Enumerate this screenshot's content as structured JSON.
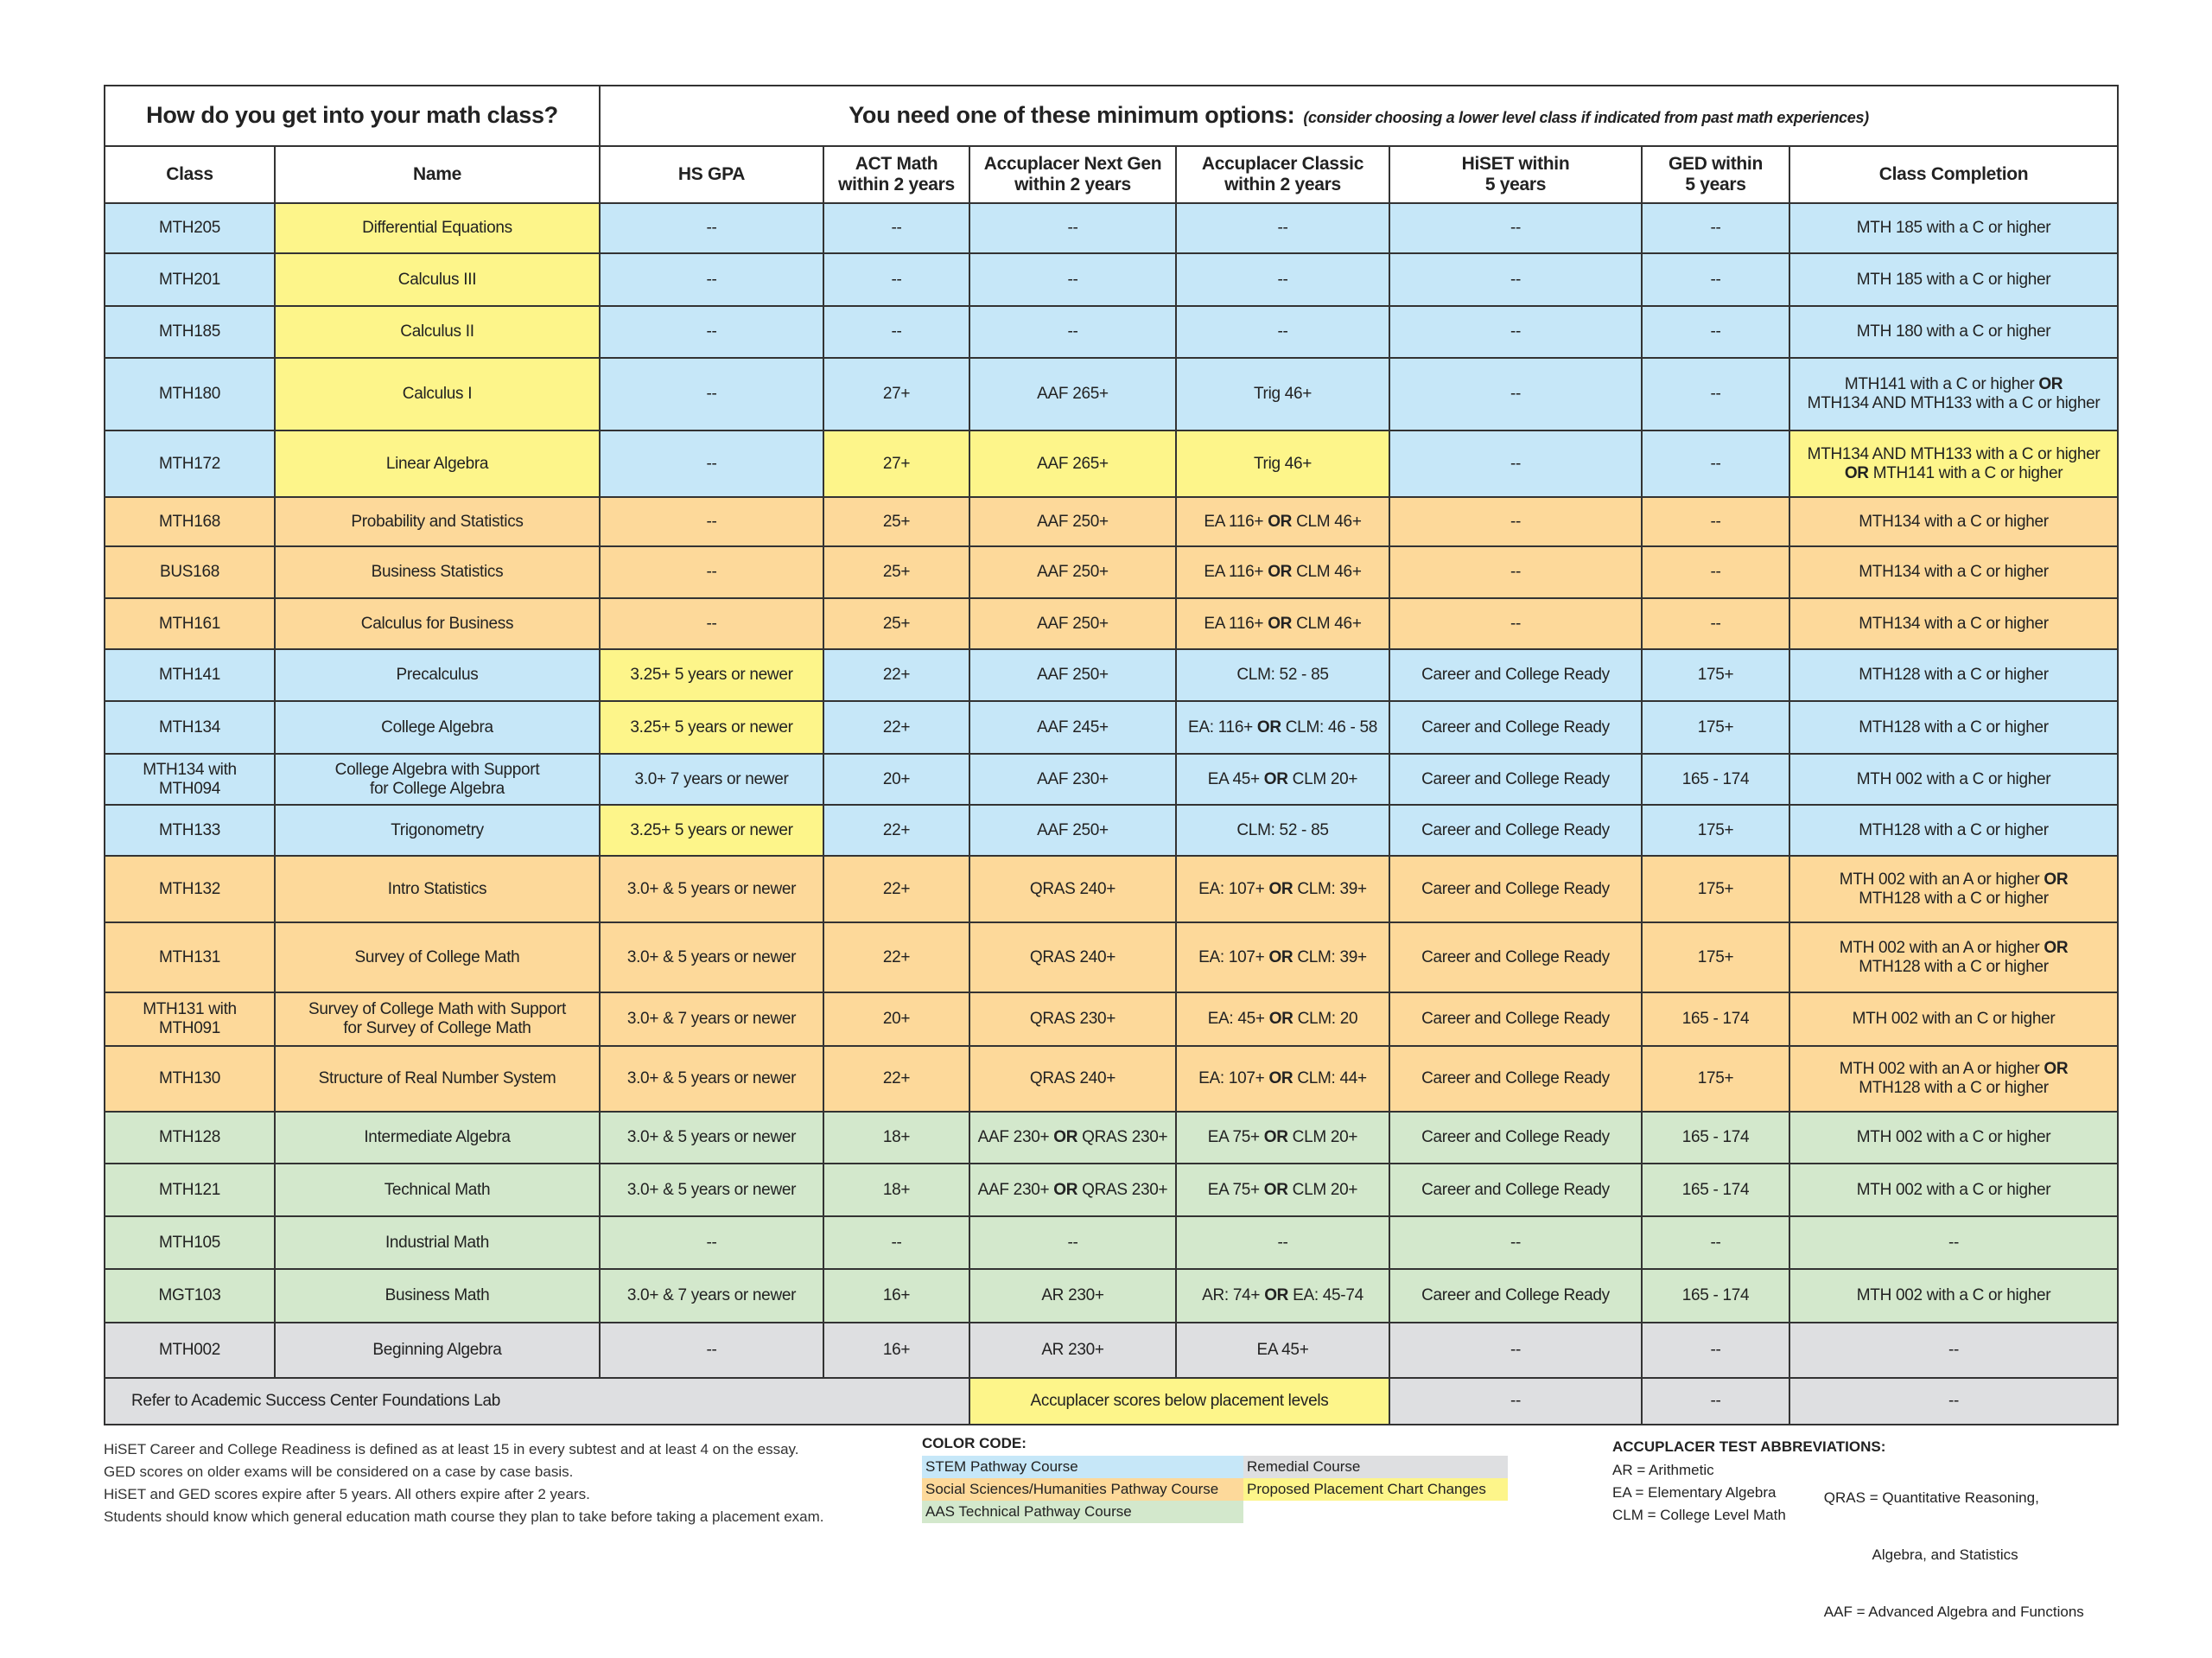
{
  "header": {
    "left_title": "How do you get into your math class?",
    "right_title": "You need one of these minimum options:",
    "right_subtitle": "(consider choosing a lower level class if indicated from past math experiences)"
  },
  "columns": [
    "Class",
    "Name",
    "HS GPA",
    "ACT Math\nwithin 2 years",
    "Accuplacer Next Gen\nwithin 2 years",
    "Accuplacer Classic\nwithin 2 years",
    "HiSET within\n5 years",
    "GED within\n5 years",
    "Class Completion"
  ],
  "colors": {
    "stem": "#c6e7f8",
    "social": "#fdd99a",
    "aas": "#d3e8cc",
    "remedial": "#dedfe1",
    "proposed": "#fdf58a"
  },
  "rows": [
    {
      "cat": "stem",
      "hl": [
        1
      ],
      "cells": [
        "MTH205",
        "Differential Equations",
        "--",
        "--",
        "--",
        "--",
        "--",
        "--",
        "MTH 185 with a C or higher"
      ]
    },
    {
      "cat": "stem",
      "hl": [
        1
      ],
      "cells": [
        "MTH201",
        "Calculus III",
        "--",
        "--",
        "--",
        "--",
        "--",
        "--",
        "MTH 185 with a C or higher"
      ]
    },
    {
      "cat": "stem",
      "hl": [
        1
      ],
      "cells": [
        "MTH185",
        "Calculus II",
        "--",
        "--",
        "--",
        "--",
        "--",
        "--",
        "MTH 180 with a C or higher"
      ]
    },
    {
      "cat": "stem",
      "hl": [
        1
      ],
      "cells": [
        "MTH180",
        "Calculus I",
        "--",
        "27+",
        "AAF 265+",
        "Trig 46+",
        "--",
        "--",
        "MTH141 with a C or higher OR\nMTH134 AND MTH133 with a C or higher"
      ]
    },
    {
      "cat": "stem",
      "hl": [
        1,
        3,
        4,
        5,
        8
      ],
      "cells": [
        "MTH172",
        "Linear Algebra",
        "--",
        "27+",
        "AAF 265+",
        "Trig 46+",
        "--",
        "--",
        "MTH134 AND MTH133 with a C or higher\nOR MTH141 with a C or higher"
      ]
    },
    {
      "cat": "social",
      "hl": [],
      "cells": [
        "MTH168",
        "Probability and Statistics",
        "--",
        "25+",
        "AAF 250+",
        "EA 116+ OR CLM 46+",
        "--",
        "--",
        "MTH134 with a C or higher"
      ]
    },
    {
      "cat": "social",
      "hl": [],
      "cells": [
        "BUS168",
        "Business Statistics",
        "--",
        "25+",
        "AAF 250+",
        "EA 116+ OR CLM 46+",
        "--",
        "--",
        "MTH134 with a C or higher"
      ]
    },
    {
      "cat": "social",
      "hl": [],
      "cells": [
        "MTH161",
        "Calculus for Business",
        "--",
        "25+",
        "AAF 250+",
        "EA 116+ OR CLM 46+",
        "--",
        "--",
        "MTH134 with a C or higher"
      ]
    },
    {
      "cat": "stem",
      "hl": [
        2
      ],
      "cells": [
        "MTH141",
        "Precalculus",
        "3.25+ 5 years or newer",
        "22+",
        "AAF 250+",
        "CLM: 52 - 85",
        "Career and College Ready",
        "175+",
        "MTH128 with a C or higher"
      ]
    },
    {
      "cat": "stem",
      "hl": [
        2
      ],
      "cells": [
        "MTH134",
        "College Algebra",
        "3.25+ 5 years or newer",
        "22+",
        "AAF 245+",
        "EA: 116+ OR CLM: 46 - 58",
        "Career and College Ready",
        "175+",
        "MTH128 with a C or higher"
      ]
    },
    {
      "cat": "stem",
      "hl": [],
      "cells": [
        "MTH134 with MTH094",
        "College Algebra with Support\nfor College Algebra",
        "3.0+ 7 years or newer",
        "20+",
        "AAF 230+",
        "EA 45+ OR CLM 20+",
        "Career and College Ready",
        "165 - 174",
        "MTH 002 with a C or higher"
      ]
    },
    {
      "cat": "stem",
      "hl": [
        2
      ],
      "cells": [
        "MTH133",
        "Trigonometry",
        "3.25+ 5 years or newer",
        "22+",
        "AAF 250+",
        "CLM: 52 - 85",
        "Career and College Ready",
        "175+",
        "MTH128 with a C or higher"
      ]
    },
    {
      "cat": "social",
      "hl": [],
      "cells": [
        "MTH132",
        "Intro Statistics",
        "3.0+ & 5 years or newer",
        "22+",
        "QRAS 240+",
        "EA: 107+ OR CLM: 39+",
        "Career and College Ready",
        "175+",
        "MTH 002 with an A or higher OR\nMTH128 with a C or higher"
      ]
    },
    {
      "cat": "social",
      "hl": [],
      "cells": [
        "MTH131",
        "Survey of College Math",
        "3.0+ & 5 years or newer",
        "22+",
        "QRAS 240+",
        "EA: 107+ OR CLM: 39+",
        "Career and College Ready",
        "175+",
        "MTH 002 with an A or higher OR\nMTH128 with a C or higher"
      ]
    },
    {
      "cat": "social",
      "hl": [],
      "cells": [
        "MTH131 with MTH091",
        "Survey of College Math with Support\nfor Survey of College Math",
        "3.0+ & 7 years or newer",
        "20+",
        "QRAS 230+",
        "EA: 45+ OR CLM: 20",
        "Career and College Ready",
        "165 - 174",
        "MTH 002 with an C or higher"
      ]
    },
    {
      "cat": "social",
      "hl": [],
      "cells": [
        "MTH130",
        "Structure of Real Number System",
        "3.0+ & 5 years or newer",
        "22+",
        "QRAS 240+",
        "EA: 107+ OR CLM: 44+",
        "Career and College Ready",
        "175+",
        "MTH 002 with an A or higher OR\nMTH128 with a C or higher"
      ]
    },
    {
      "cat": "aas",
      "hl": [],
      "cells": [
        "MTH128",
        "Intermediate Algebra",
        "3.0+ & 5 years or newer",
        "18+",
        "AAF 230+ OR QRAS 230+",
        "EA 75+ OR CLM 20+",
        "Career and College Ready",
        "165 - 174",
        "MTH 002 with a C or higher"
      ]
    },
    {
      "cat": "aas",
      "hl": [],
      "cells": [
        "MTH121",
        "Technical Math",
        "3.0+ & 5 years or newer",
        "18+",
        "AAF 230+ OR QRAS 230+",
        "EA 75+ OR CLM 20+",
        "Career and College Ready",
        "165 - 174",
        "MTH 002 with a C or higher"
      ]
    },
    {
      "cat": "aas",
      "hl": [],
      "cells": [
        "MTH105",
        "Industrial Math",
        "--",
        "--",
        "--",
        "--",
        "--",
        "--",
        "--"
      ]
    },
    {
      "cat": "aas",
      "hl": [],
      "cells": [
        "MGT103",
        "Business Math",
        "3.0+ & 7 years or newer",
        "16+",
        "AR 230+",
        "AR: 74+ OR EA: 45-74",
        "Career and College Ready",
        "165 - 174",
        "MTH 002 with a C or higher"
      ]
    },
    {
      "cat": "remedial",
      "hl": [],
      "cells": [
        "MTH002",
        "Beginning Algebra",
        "--",
        "16+",
        "AR 230+",
        "EA 45+",
        "--",
        "--",
        "--"
      ]
    }
  ],
  "final_row": {
    "referral": "Refer to Academic Success Center Foundations Lab",
    "accuplacer": "Accuplacer scores below placement levels",
    "hiset": "--",
    "ged": "--",
    "completion": "--"
  },
  "notes": [
    "HiSET Career and College Readiness is defined as at least 15 in every subtest and at least 4 on the essay.",
    "GED scores on older exams will be considered on a case by case basis.",
    "HiSET and GED scores expire after 5 years.  All others expire after 2 years.",
    "Students should know which general education math course they plan to take before taking a placement exam."
  ],
  "legend": {
    "title": "COLOR CODE:",
    "stem": "STEM Pathway Course",
    "remedial": "Remedial Course",
    "social": "Social Sciences/Humanities Pathway Course",
    "proposed": "Proposed Placement Chart Changes",
    "aas": "AAS Technical Pathway Course"
  },
  "abbreviations": {
    "title": "ACCUPLACER TEST ABBREVIATIONS:",
    "left": [
      "AR = Arithmetic",
      "EA = Elementary Algebra",
      "CLM = College Level Math"
    ],
    "right": [
      "QRAS = Quantitative Reasoning,",
      "            Algebra, and Statistics",
      "AAF = Advanced Algebra and Functions"
    ]
  }
}
